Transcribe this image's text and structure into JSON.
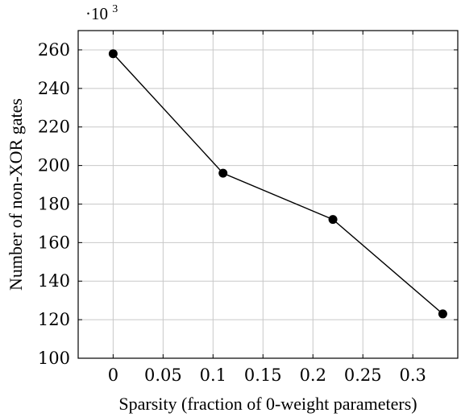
{
  "chart_data": {
    "type": "line",
    "xlabel": "Sparsity (fraction of 0-weight parameters)",
    "ylabel": "Number of non-XOR gates",
    "y_multiplier_label": "·10",
    "y_multiplier_exponent": "3",
    "xlim": [
      -0.035,
      0.345
    ],
    "ylim": [
      100,
      270
    ],
    "xticks": [
      0,
      0.05,
      0.1,
      0.15,
      0.2,
      0.25,
      0.3
    ],
    "xtick_labels": [
      "0",
      "0.05",
      "0.1",
      "0.15",
      "0.2",
      "0.25",
      "0.3"
    ],
    "yticks": [
      100,
      120,
      140,
      160,
      180,
      200,
      220,
      240,
      260
    ],
    "ytick_labels": [
      "100",
      "120",
      "140",
      "160",
      "180",
      "200",
      "220",
      "240",
      "260"
    ],
    "grid": true,
    "series": [
      {
        "x": [
          0,
          0.11,
          0.22,
          0.33
        ],
        "y": [
          258,
          196,
          172,
          123
        ]
      }
    ]
  }
}
